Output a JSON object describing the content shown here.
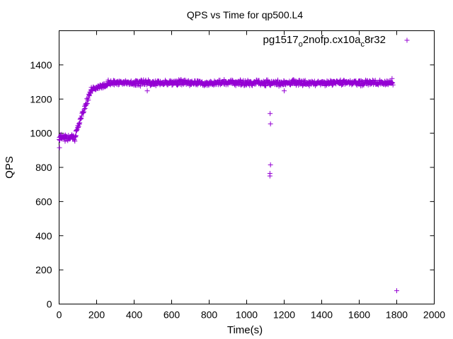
{
  "chart_data": {
    "type": "scatter",
    "title": "QPS vs Time for qp500.L4",
    "xlabel": "Time(s)",
    "ylabel": "QPS",
    "xlim": [
      0,
      2000
    ],
    "ylim": [
      0,
      1600
    ],
    "xticks": [
      0,
      200,
      400,
      600,
      800,
      1000,
      1200,
      1400,
      1600,
      1800,
      2000
    ],
    "yticks": [
      0,
      200,
      400,
      600,
      800,
      1000,
      1200,
      1400
    ],
    "grid": false,
    "legend_position": "top-right",
    "series": [
      {
        "name": "pg1517_o2nofp.cx10a_c8r32",
        "name_parts": {
          "base": "pg1517",
          "sub1": "o",
          "mid": "2nofp.cx10a",
          "sub2": "c",
          "tail": "8r32"
        },
        "color": "#9400d3",
        "marker": "plus",
        "description": "QPS sampled about every 2 seconds from 0 to 1800 s; starts near 960, ramps 90-170 s up to ~1270, then steady around 1290-1300 with a few outliers",
        "segments": [
          {
            "x_start": 0,
            "x_end": 90,
            "y_center": 975,
            "y_spread": 25
          },
          {
            "x_start": 90,
            "x_end": 170,
            "y_start": 1010,
            "y_end": 1250,
            "y_spread": 20
          },
          {
            "x_start": 170,
            "x_end": 260,
            "y_start": 1255,
            "y_end": 1285,
            "y_spread": 15
          },
          {
            "x_start": 260,
            "x_end": 1780,
            "y_center": 1295,
            "y_spread": 20
          }
        ],
        "outliers": [
          {
            "x": 2,
            "y": 915
          },
          {
            "x": 470,
            "y": 1248
          },
          {
            "x": 1125,
            "y": 1115
          },
          {
            "x": 1127,
            "y": 1055
          },
          {
            "x": 1127,
            "y": 815
          },
          {
            "x": 1124,
            "y": 765
          },
          {
            "x": 1124,
            "y": 750
          },
          {
            "x": 1200,
            "y": 1248
          },
          {
            "x": 1775,
            "y": 1320
          },
          {
            "x": 1800,
            "y": 78
          }
        ]
      }
    ]
  }
}
